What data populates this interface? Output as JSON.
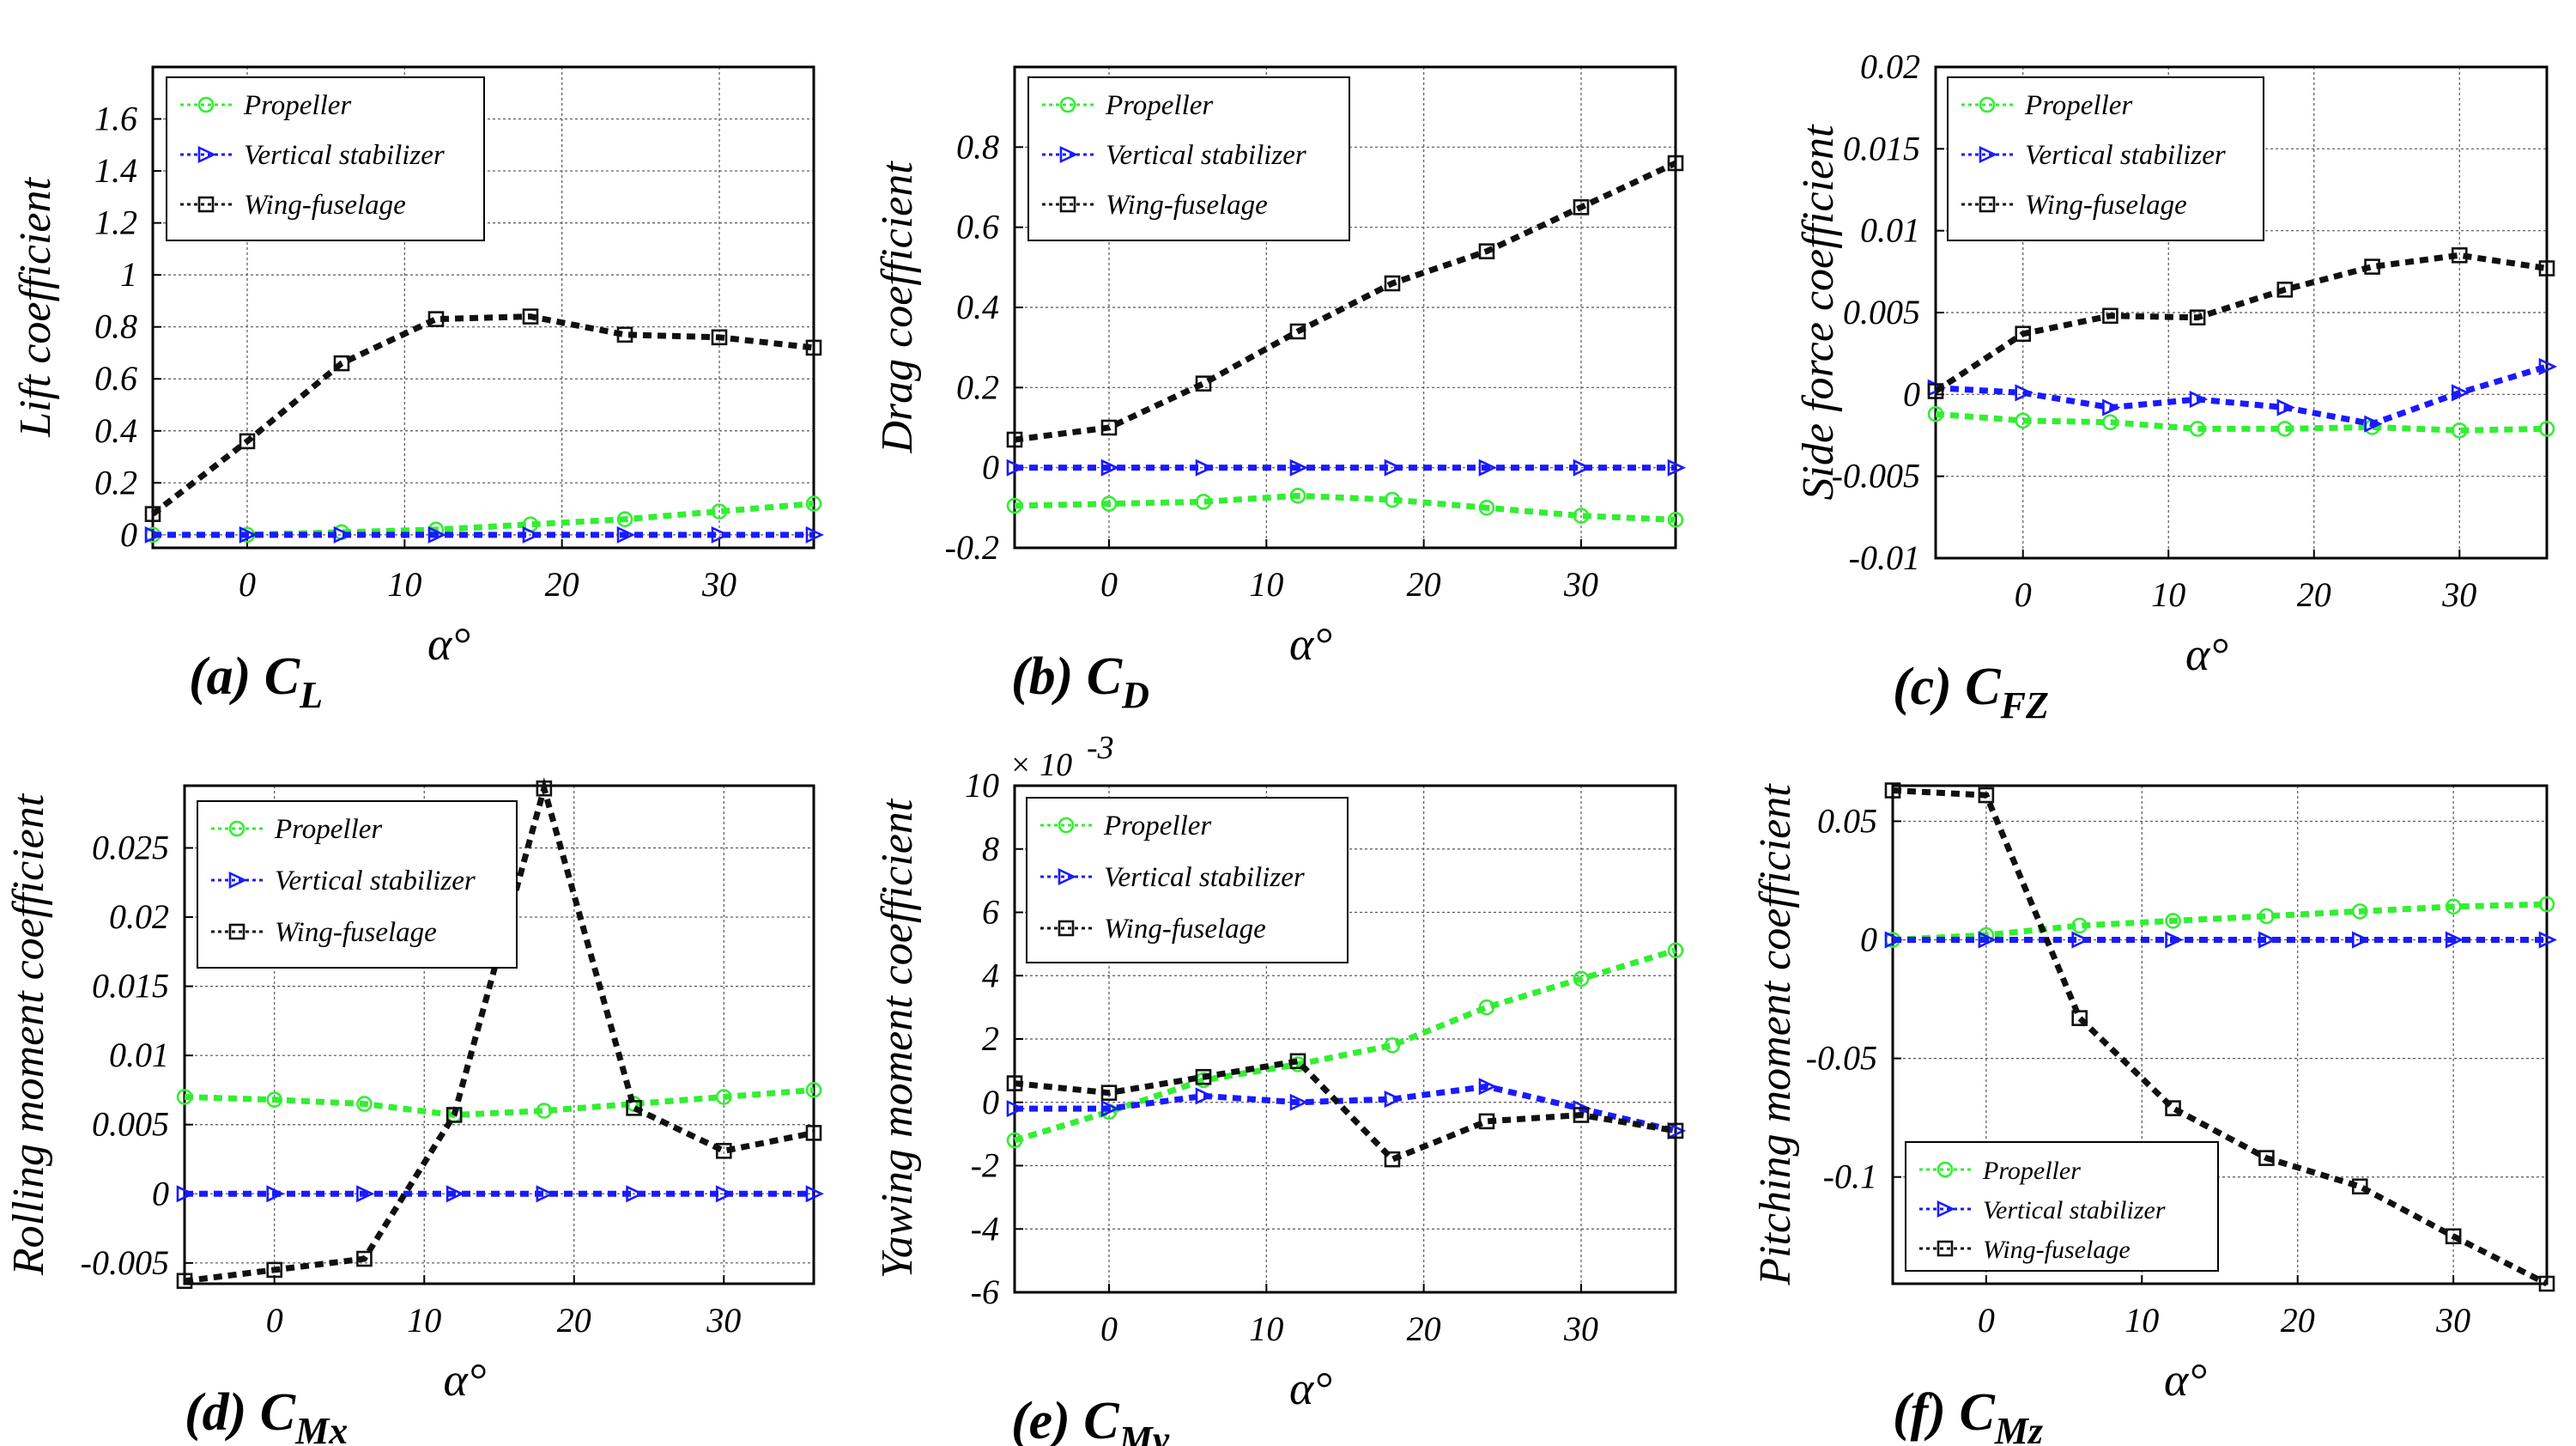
{
  "series_names": [
    "Propeller",
    "Vertical stabilizer",
    "Wing-fuselage"
  ],
  "series_colors": [
    "#33ee33",
    "#1a1aff",
    "#111111"
  ],
  "series_markers": [
    "circle",
    "triangle-right",
    "square"
  ],
  "x_label": "α°",
  "chart_data": [
    {
      "id": "a",
      "type": "line",
      "caption_prefix": "(a) C",
      "caption_sub": "L",
      "ylabel": "Lift coefficient",
      "xlabel": "α°",
      "xlim": [
        -6,
        36
      ],
      "ylim": [
        -0.05,
        1.8
      ],
      "xticks": [
        0,
        10,
        20,
        30
      ],
      "yticks": [
        0,
        0.2,
        0.4,
        0.6,
        0.8,
        1,
        1.2,
        1.4,
        1.6
      ],
      "ytick_labels": [
        "0",
        "0.2",
        "0.4",
        "0.6",
        "0.8",
        "1",
        "1.2",
        "1.4",
        "1.6"
      ],
      "legend_position": "top-left",
      "x": [
        -6,
        0,
        6,
        12,
        18,
        24,
        30,
        36
      ],
      "series": [
        {
          "name": "Propeller",
          "values": [
            0.0,
            0.0,
            0.01,
            0.02,
            0.04,
            0.06,
            0.09,
            0.12
          ]
        },
        {
          "name": "Vertical stabilizer",
          "values": [
            0.0,
            0.0,
            0.0,
            0.0,
            0.0,
            0.0,
            0.0,
            0.0
          ]
        },
        {
          "name": "Wing-fuselage",
          "values": [
            0.08,
            0.36,
            0.66,
            0.83,
            0.84,
            0.77,
            0.76,
            0.72
          ]
        }
      ]
    },
    {
      "id": "b",
      "type": "line",
      "caption_prefix": "(b) C",
      "caption_sub": "D",
      "ylabel": "Drag coefficient",
      "xlabel": "α°",
      "xlim": [
        -6,
        36
      ],
      "ylim": [
        -0.2,
        1.0
      ],
      "xticks": [
        0,
        10,
        20,
        30
      ],
      "yticks": [
        -0.2,
        0,
        0.2,
        0.4,
        0.6,
        0.8
      ],
      "ytick_labels": [
        "-0.2",
        "0",
        "0.2",
        "0.4",
        "0.6",
        "0.8"
      ],
      "legend_position": "top-left",
      "x": [
        -6,
        0,
        6,
        12,
        18,
        24,
        30,
        36
      ],
      "series": [
        {
          "name": "Propeller",
          "values": [
            -0.095,
            -0.09,
            -0.085,
            -0.07,
            -0.08,
            -0.1,
            -0.12,
            -0.13
          ]
        },
        {
          "name": "Vertical stabilizer",
          "values": [
            0.0,
            0.0,
            0.0,
            0.0,
            0.0,
            0.0,
            0.0,
            0.0
          ]
        },
        {
          "name": "Wing-fuselage",
          "values": [
            0.07,
            0.1,
            0.21,
            0.34,
            0.46,
            0.54,
            0.65,
            0.76
          ]
        }
      ]
    },
    {
      "id": "c",
      "type": "line",
      "caption_prefix": "(c) C",
      "caption_sub": "FZ",
      "ylabel": "Side force coefficient",
      "xlabel": "α°",
      "xlim": [
        -6,
        36
      ],
      "ylim": [
        -0.01,
        0.02
      ],
      "xticks": [
        0,
        10,
        20,
        30
      ],
      "yticks": [
        -0.01,
        -0.005,
        0,
        0.005,
        0.01,
        0.015,
        0.02
      ],
      "ytick_labels": [
        "-0.01",
        "-0.005",
        "0",
        "0.005",
        "0.01",
        "0.015",
        "0.02"
      ],
      "legend_position": "top-left",
      "x": [
        -6,
        0,
        6,
        12,
        18,
        24,
        30,
        36
      ],
      "series": [
        {
          "name": "Propeller",
          "values": [
            -0.0012,
            -0.0016,
            -0.0017,
            -0.0021,
            -0.0021,
            -0.002,
            -0.0022,
            -0.0021
          ]
        },
        {
          "name": "Vertical stabilizer",
          "values": [
            0.0004,
            0.0001,
            -0.0008,
            -0.0003,
            -0.0008,
            -0.0018,
            0.0001,
            0.0017
          ]
        },
        {
          "name": "Wing-fuselage",
          "values": [
            0.0002,
            0.0037,
            0.0048,
            0.0047,
            0.0064,
            0.0078,
            0.0085,
            0.0077
          ]
        }
      ]
    },
    {
      "id": "d",
      "type": "line",
      "caption_prefix": "(d) C",
      "caption_sub": "Mx",
      "ylabel": "Rolling moment coefficient",
      "xlabel": "α°",
      "xlim": [
        -6,
        36
      ],
      "ylim": [
        -0.0065,
        0.0295
      ],
      "xticks": [
        0,
        10,
        20,
        30
      ],
      "yticks": [
        -0.005,
        0,
        0.005,
        0.01,
        0.015,
        0.02,
        0.025
      ],
      "ytick_labels": [
        "-0.005",
        "0",
        "0.005",
        "0.01",
        "0.015",
        "0.02",
        "0.025"
      ],
      "legend_position": "top-left",
      "x": [
        -6,
        0,
        6,
        12,
        18,
        24,
        30,
        36
      ],
      "series": [
        {
          "name": "Propeller",
          "values": [
            0.007,
            0.0068,
            0.0065,
            0.0057,
            0.006,
            0.0065,
            0.007,
            0.0075
          ]
        },
        {
          "name": "Vertical stabilizer",
          "values": [
            0.0,
            0.0,
            0.0,
            0.0,
            0.0,
            0.0,
            0.0,
            0.0
          ]
        },
        {
          "name": "Wing-fuselage",
          "values": [
            -0.0063,
            -0.0055,
            -0.0047,
            0.0057,
            0.0293,
            0.0062,
            0.0031,
            0.0044
          ]
        }
      ]
    },
    {
      "id": "e",
      "type": "line",
      "caption_prefix": "(e) C",
      "caption_sub": "My",
      "ylabel": "Yawing moment coefficient",
      "xlabel": "α°",
      "xlim": [
        -6,
        36
      ],
      "ylim": [
        -6,
        10
      ],
      "xticks": [
        0,
        10,
        20,
        30
      ],
      "yticks": [
        -6,
        -4,
        -2,
        0,
        2,
        4,
        6,
        8,
        10
      ],
      "ytick_labels": [
        "-6",
        "-4",
        "-2",
        "0",
        "2",
        "4",
        "6",
        "8",
        "10"
      ],
      "multiplier_base": "× 10",
      "multiplier_exp": "-3",
      "legend_position": "top-left",
      "x": [
        -6,
        0,
        6,
        12,
        18,
        24,
        30,
        36
      ],
      "series": [
        {
          "name": "Propeller",
          "values": [
            -1.2,
            -0.3,
            0.7,
            1.2,
            1.8,
            3.0,
            3.9,
            4.8
          ]
        },
        {
          "name": "Vertical stabilizer",
          "values": [
            -0.2,
            -0.2,
            0.2,
            0.0,
            0.1,
            0.5,
            -0.2,
            -0.9
          ]
        },
        {
          "name": "Wing-fuselage",
          "values": [
            0.6,
            0.3,
            0.8,
            1.3,
            -1.8,
            -0.6,
            -0.4,
            -0.9
          ]
        }
      ]
    },
    {
      "id": "f",
      "type": "line",
      "caption_prefix": "(f) C",
      "caption_sub": "Mz",
      "ylabel": "Pitching moment coefficient",
      "xlabel": "α°",
      "xlim": [
        -6,
        36
      ],
      "ylim": [
        -0.145,
        0.065
      ],
      "xticks": [
        0,
        10,
        20,
        30
      ],
      "yticks": [
        -0.1,
        -0.05,
        0,
        0.05
      ],
      "ytick_labels": [
        "-0.1",
        "-0.05",
        "0",
        "0.05"
      ],
      "legend_position": "bottom-left",
      "x": [
        -6,
        0,
        6,
        12,
        18,
        24,
        30,
        36
      ],
      "series": [
        {
          "name": "Propeller",
          "values": [
            0.0,
            0.002,
            0.006,
            0.008,
            0.01,
            0.012,
            0.014,
            0.015
          ]
        },
        {
          "name": "Vertical stabilizer",
          "values": [
            0.0,
            0.0,
            0.0,
            0.0,
            0.0,
            0.0,
            0.0,
            0.0
          ]
        },
        {
          "name": "Wing-fuselage",
          "values": [
            0.063,
            0.061,
            -0.033,
            -0.071,
            -0.092,
            -0.104,
            -0.125,
            -0.145
          ]
        }
      ]
    }
  ]
}
